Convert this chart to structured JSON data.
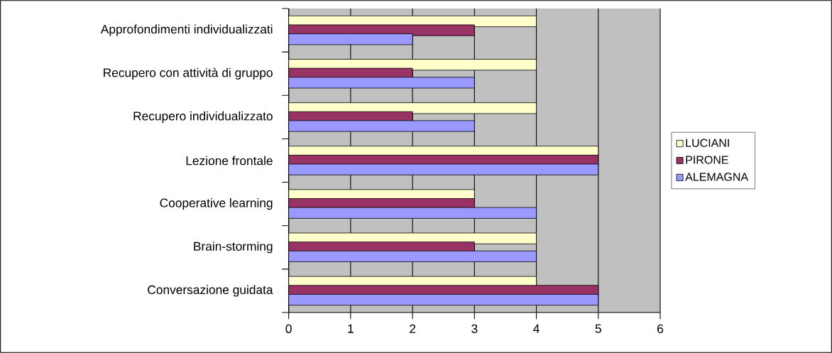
{
  "chart_data": {
    "type": "bar",
    "orientation": "horizontal",
    "categories": [
      "Approfondimenti individualizzati",
      "Recupero con attività di gruppo",
      "Recupero individualizzato",
      "Lezione frontale",
      "Cooperative learning",
      "Brain-storming",
      "Conversazione guidata"
    ],
    "series": [
      {
        "name": "LUCIANI",
        "color": "#ffffcc",
        "values": [
          4,
          4,
          4,
          5,
          3,
          4,
          4
        ]
      },
      {
        "name": "PIRONE",
        "color": "#993366",
        "values": [
          3,
          2,
          2,
          5,
          3,
          3,
          5
        ]
      },
      {
        "name": "ALEMAGNA",
        "color": "#9999ff",
        "values": [
          2,
          3,
          3,
          5,
          4,
          4,
          5
        ]
      }
    ],
    "xlim": [
      0,
      6
    ],
    "xticks": [
      0,
      1,
      2,
      3,
      4,
      5,
      6
    ],
    "grid": "x",
    "legend": "right"
  }
}
